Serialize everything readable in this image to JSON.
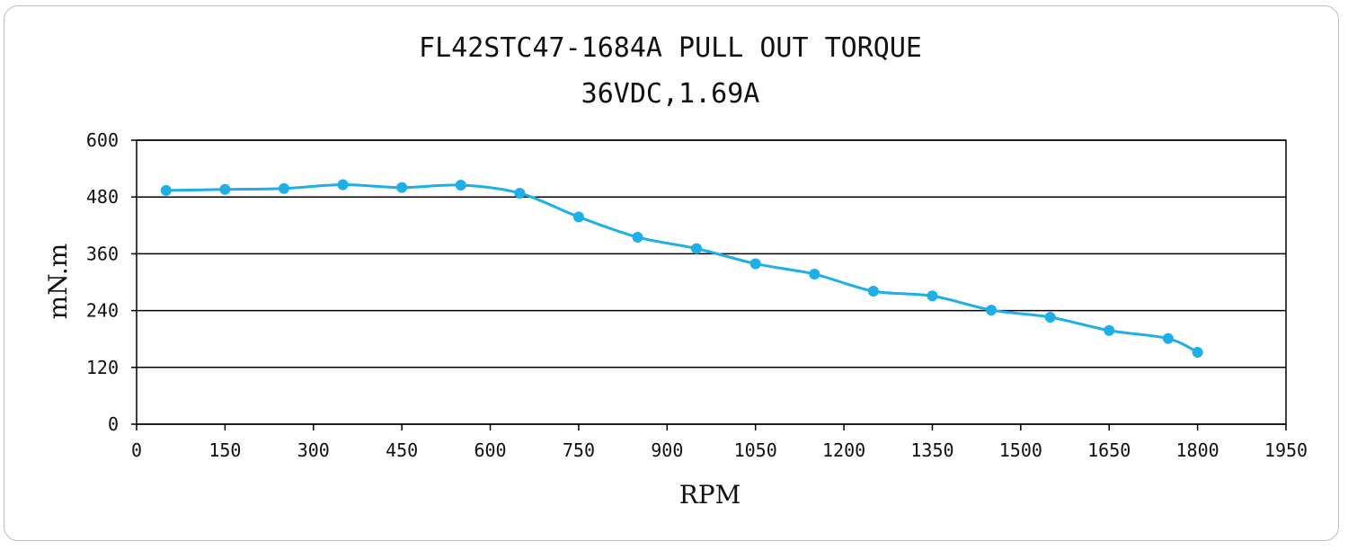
{
  "chart_data": {
    "type": "line",
    "title": "FL42STC47-1684A PULL OUT TORQUE",
    "subtitle": "36VDC,1.69A",
    "xlabel": "RPM",
    "ylabel": "mN.m",
    "xlim": [
      0,
      1950
    ],
    "ylim": [
      0,
      600
    ],
    "x_ticks": [
      0,
      150,
      300,
      450,
      600,
      750,
      900,
      1050,
      1200,
      1350,
      1500,
      1650,
      1800,
      1950
    ],
    "y_ticks": [
      0,
      120,
      240,
      360,
      480,
      600
    ],
    "grid": "horizontal",
    "line_color": "#1eaee8",
    "series": [
      {
        "x": [
          50,
          150,
          250,
          350,
          450,
          550,
          650,
          750,
          850,
          950,
          1050,
          1150,
          1250,
          1350,
          1450,
          1550,
          1650,
          1750,
          1800
        ],
        "values": [
          494,
          496,
          498,
          506,
          500,
          505,
          488,
          438,
          395,
          371,
          339,
          317,
          281,
          271,
          241,
          226,
          198,
          181,
          152
        ]
      }
    ]
  }
}
